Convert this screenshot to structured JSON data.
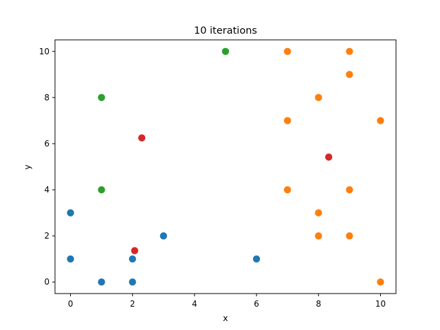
{
  "chart_data": {
    "type": "scatter",
    "title": "10 iterations",
    "xlabel": "x",
    "ylabel": "y",
    "xlim": [
      -0.5,
      10.5
    ],
    "ylim": [
      -0.5,
      10.5
    ],
    "x_ticks": [
      0,
      2,
      4,
      6,
      8,
      10
    ],
    "y_ticks": [
      0,
      2,
      4,
      6,
      8,
      10
    ],
    "x_tick_labels": [
      "0",
      "2",
      "4",
      "6",
      "8",
      "10"
    ],
    "y_tick_labels": [
      "0",
      "2",
      "4",
      "6",
      "8",
      "10"
    ],
    "grid": false,
    "legend": "none",
    "series": [
      {
        "color": "#1f77b4",
        "points": [
          {
            "x": 0,
            "y": 3
          },
          {
            "x": 0,
            "y": 1
          },
          {
            "x": 1,
            "y": 0
          },
          {
            "x": 2,
            "y": 0
          },
          {
            "x": 2,
            "y": 1
          },
          {
            "x": 3,
            "y": 2
          },
          {
            "x": 6,
            "y": 1
          }
        ]
      },
      {
        "color": "#ff7f0e",
        "points": [
          {
            "x": 7,
            "y": 10
          },
          {
            "x": 9,
            "y": 10
          },
          {
            "x": 9,
            "y": 9
          },
          {
            "x": 8,
            "y": 8
          },
          {
            "x": 7,
            "y": 7
          },
          {
            "x": 10,
            "y": 7
          },
          {
            "x": 7,
            "y": 4
          },
          {
            "x": 9,
            "y": 4
          },
          {
            "x": 8,
            "y": 3
          },
          {
            "x": 8,
            "y": 2
          },
          {
            "x": 9,
            "y": 2
          },
          {
            "x": 10,
            "y": 0
          }
        ]
      },
      {
        "color": "#2ca02c",
        "points": [
          {
            "x": 5,
            "y": 10
          },
          {
            "x": 1,
            "y": 8
          },
          {
            "x": 1,
            "y": 4
          }
        ]
      },
      {
        "color": "#d62728",
        "points": [
          {
            "x": 2.3,
            "y": 6.25
          },
          {
            "x": 8.33,
            "y": 5.42
          },
          {
            "x": 2.07,
            "y": 1.36
          }
        ]
      }
    ]
  }
}
